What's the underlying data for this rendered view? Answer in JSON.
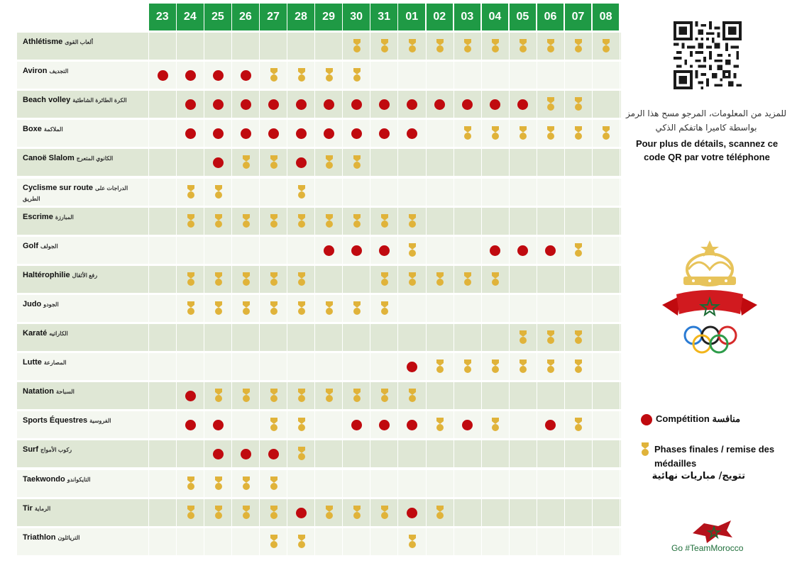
{
  "days": [
    "23",
    "24",
    "25",
    "26",
    "27",
    "28",
    "29",
    "30",
    "31",
    "01",
    "02",
    "03",
    "04",
    "05",
    "06",
    "07",
    "08"
  ],
  "sports": [
    {
      "fr": "Athlétisme",
      "ar": "ألعاب القوى",
      "ar2": "",
      "marks": {
        "30": "m",
        "31": "m",
        "01": "m",
        "02": "m",
        "03": "m",
        "04": "m",
        "05": "m",
        "06": "m",
        "07": "m",
        "08": "m"
      }
    },
    {
      "fr": "Aviron",
      "ar": "التجديف",
      "ar2": "",
      "marks": {
        "23": "c",
        "24": "c",
        "25": "c",
        "26": "c",
        "27": "m",
        "28": "m",
        "29": "m",
        "30": "m"
      }
    },
    {
      "fr": "Beach volley",
      "ar": "الكرة الطائرة الشاطئية",
      "ar2": "",
      "marks": {
        "24": "c",
        "25": "c",
        "26": "c",
        "27": "c",
        "28": "c",
        "29": "c",
        "30": "c",
        "31": "c",
        "01": "c",
        "02": "c",
        "03": "c",
        "04": "c",
        "05": "c",
        "06": "m",
        "07": "m"
      }
    },
    {
      "fr": "Boxe",
      "ar": "الملاكمة",
      "ar2": "",
      "marks": {
        "24": "c",
        "25": "c",
        "26": "c",
        "27": "c",
        "28": "c",
        "29": "c",
        "30": "c",
        "31": "c",
        "01": "c",
        "03": "m",
        "04": "m",
        "05": "m",
        "06": "m",
        "07": "m",
        "08": "m"
      }
    },
    {
      "fr": "Canoë Slalom",
      "ar": "الكانوي المتعرج",
      "ar2": "",
      "marks": {
        "25": "c",
        "26": "m",
        "27": "m",
        "28": "c",
        "29": "m",
        "30": "m"
      }
    },
    {
      "fr": "Cyclisme sur route",
      "ar": "الدراجات على",
      "ar2": "الطريق",
      "marks": {
        "24": "m",
        "25": "m",
        "28": "m"
      }
    },
    {
      "fr": "Escrime",
      "ar": "المبارزة",
      "ar2": "",
      "marks": {
        "24": "m",
        "25": "m",
        "26": "m",
        "27": "m",
        "28": "m",
        "29": "m",
        "30": "m",
        "31": "m",
        "01": "m"
      }
    },
    {
      "fr": "Golf",
      "ar": "الجولف",
      "ar2": "",
      "marks": {
        "29": "c",
        "30": "c",
        "31": "c",
        "01": "m",
        "04": "c",
        "05": "c",
        "06": "c",
        "07": "m"
      }
    },
    {
      "fr": "Haltérophilie",
      "ar": "رفع الأثقال",
      "ar2": "",
      "marks": {
        "24": "m",
        "25": "m",
        "26": "m",
        "27": "m",
        "28": "m",
        "31": "m",
        "01": "m",
        "02": "m",
        "03": "m",
        "04": "m"
      }
    },
    {
      "fr": "Judo",
      "ar": "الجودو",
      "ar2": "",
      "marks": {
        "24": "m",
        "25": "m",
        "26": "m",
        "27": "m",
        "28": "m",
        "29": "m",
        "30": "m",
        "31": "m"
      }
    },
    {
      "fr": "Karaté",
      "ar": "الكاراتيه",
      "ar2": "",
      "marks": {
        "05": "m",
        "06": "m",
        "07": "m"
      }
    },
    {
      "fr": "Lutte",
      "ar": "المصارعة",
      "ar2": "",
      "marks": {
        "01": "c",
        "02": "m",
        "03": "m",
        "04": "m",
        "05": "m",
        "06": "m",
        "07": "m"
      }
    },
    {
      "fr": "Natation",
      "ar": "السباحة",
      "ar2": "",
      "marks": {
        "24": "c",
        "25": "m",
        "26": "m",
        "27": "m",
        "28": "m",
        "29": "m",
        "30": "m",
        "31": "m",
        "01": "m"
      }
    },
    {
      "fr": "Sports Équestres",
      "ar": "الفروسية",
      "ar2": "",
      "marks": {
        "24": "c",
        "25": "c",
        "27": "m",
        "28": "m",
        "30": "c",
        "31": "c",
        "01": "c",
        "02": "m",
        "03": "c",
        "04": "m",
        "06": "c",
        "07": "m"
      }
    },
    {
      "fr": "Surf",
      "ar": "ركوب الأمواج",
      "ar2": "",
      "marks": {
        "25": "c",
        "26": "c",
        "27": "c",
        "28": "m"
      }
    },
    {
      "fr": "Taekwondo",
      "ar": "التايكواندو",
      "ar2": "",
      "marks": {
        "24": "m",
        "25": "m",
        "26": "m",
        "27": "m"
      }
    },
    {
      "fr": "Tir",
      "ar": "الرماية",
      "ar2": "",
      "marks": {
        "24": "m",
        "25": "m",
        "26": "m",
        "27": "m",
        "28": "c",
        "29": "m",
        "30": "m",
        "31": "m",
        "01": "c",
        "02": "m"
      }
    },
    {
      "fr": "Triathlon",
      "ar": "الترياثلون",
      "ar2": "",
      "marks": {
        "27": "m",
        "28": "m",
        "01": "m"
      }
    }
  ],
  "info": {
    "ar": "للمزيد من المعلومات، المرجو مسح هذا الرمز بواسطة كاميرا هاتفكم الذكي",
    "fr": "Pour plus de détails, scannez ce code QR par votre téléphone"
  },
  "legend": {
    "competition": "Compétition منافسة",
    "finals_fr": "Phases finales / remise des médailles",
    "finals_ar": "تتويج/ مباريات نهائية"
  },
  "footer": {
    "hashtag": "Go #TeamMorocco"
  },
  "colors": {
    "green": "#1f9a45",
    "red": "#c00a0f",
    "gold": "#e0b33a",
    "row_dark": "#dfe7d5",
    "row_light": "#f4f7f0"
  },
  "icons": {
    "competition": "red-dot-icon",
    "medal": "medal-icon",
    "qr": "qr-code-icon",
    "emblem": "olympic-committee-emblem-icon",
    "flag": "morocco-flag-icon"
  }
}
